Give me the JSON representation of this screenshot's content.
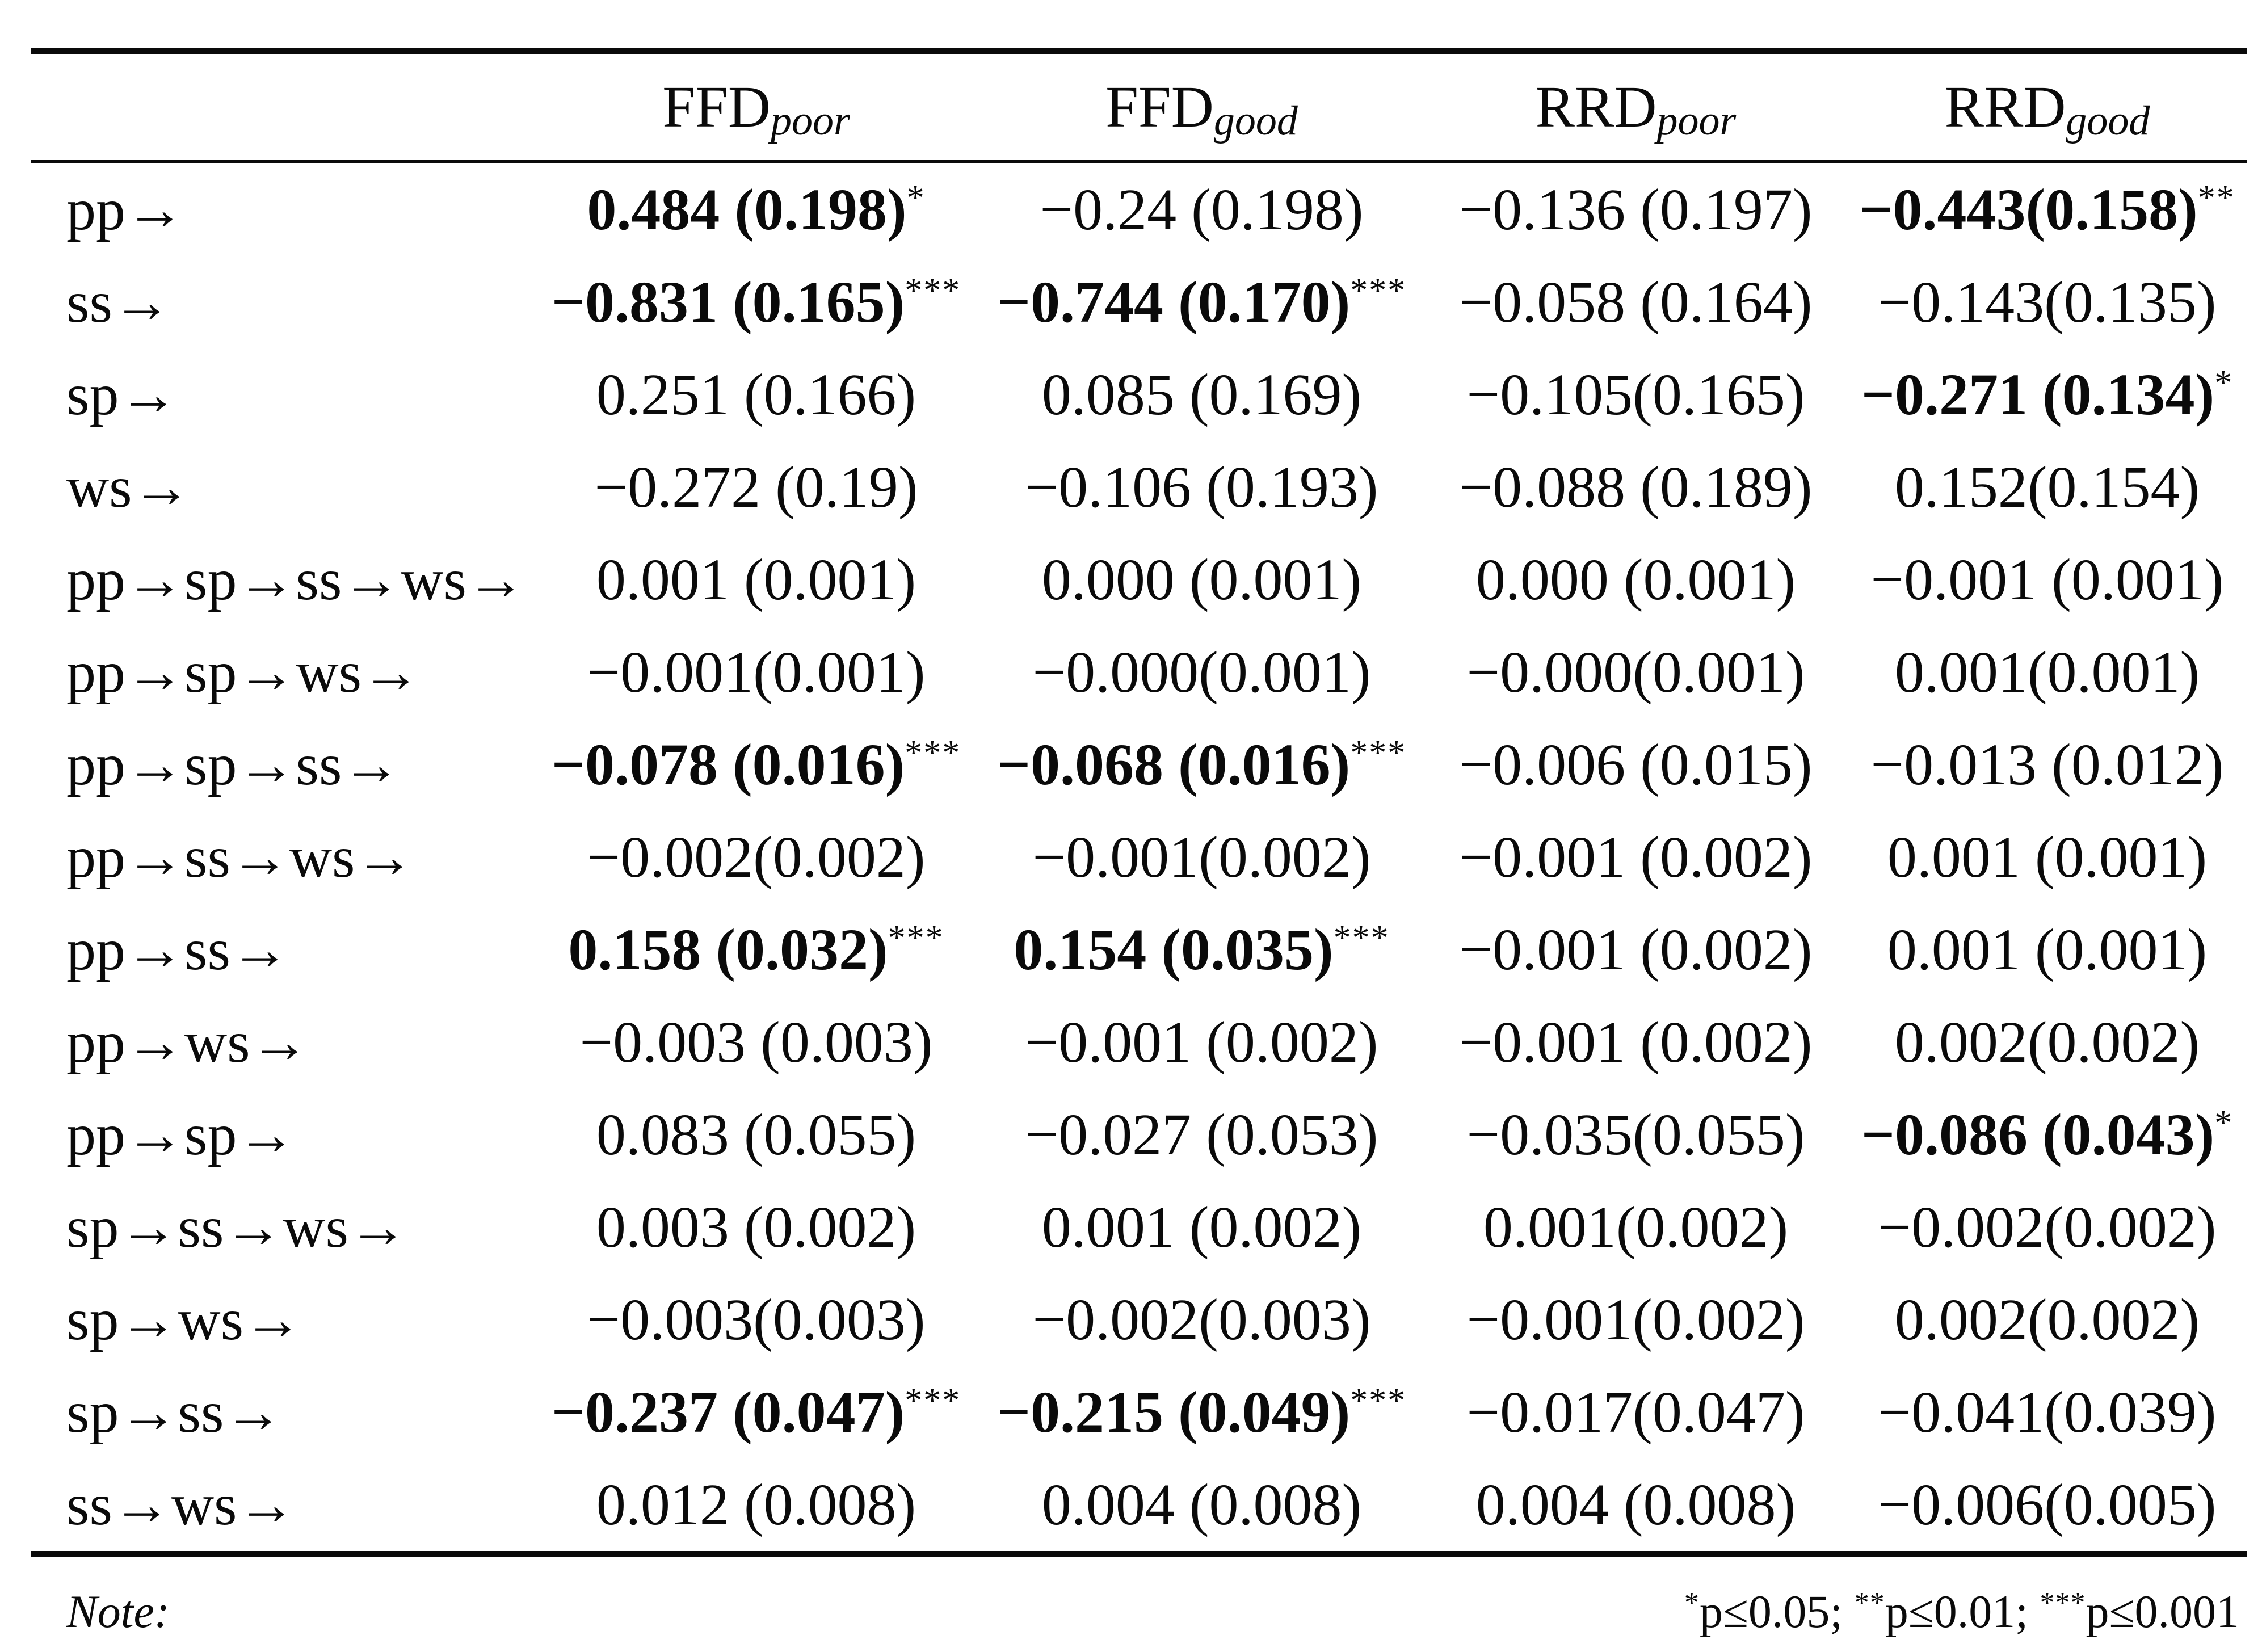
{
  "colors": {
    "background": "#ffffff",
    "text": "#0a0a0a",
    "rule": "#0a0a0a"
  },
  "note": {
    "label": "Note:",
    "legend": [
      {
        "stars": "*",
        "text": "p≤0.05; "
      },
      {
        "stars": "**",
        "text": "p≤0.01; "
      },
      {
        "stars": "***",
        "text": "p≤0.001"
      }
    ]
  },
  "table": {
    "columns": [
      {
        "base": "FFD",
        "sub": "poor"
      },
      {
        "base": "FFD",
        "sub": "good"
      },
      {
        "base": "RRD",
        "sub": "poor"
      },
      {
        "base": "RRD",
        "sub": "good"
      }
    ],
    "rows": [
      {
        "label": "pp→",
        "cells": [
          {
            "text": "0.484 (0.198)",
            "stars": "*",
            "bold": true
          },
          {
            "text": "−0.24 (0.198)",
            "stars": "",
            "bold": false
          },
          {
            "text": "−0.136 (0.197)",
            "stars": "",
            "bold": false
          },
          {
            "text": "−0.443(0.158)",
            "stars": "**",
            "bold": true
          }
        ]
      },
      {
        "label": "ss→",
        "cells": [
          {
            "text": "−0.831 (0.165)",
            "stars": "***",
            "bold": true
          },
          {
            "text": "−0.744 (0.170)",
            "stars": "***",
            "bold": true
          },
          {
            "text": "−0.058 (0.164)",
            "stars": "",
            "bold": false
          },
          {
            "text": "−0.143(0.135)",
            "stars": "",
            "bold": false
          }
        ]
      },
      {
        "label": "sp→",
        "cells": [
          {
            "text": "0.251 (0.166)",
            "stars": "",
            "bold": false
          },
          {
            "text": "0.085 (0.169)",
            "stars": "",
            "bold": false
          },
          {
            "text": "−0.105(0.165)",
            "stars": "",
            "bold": false
          },
          {
            "text": "−0.271 (0.134)",
            "stars": "*",
            "bold": true
          }
        ]
      },
      {
        "label": "ws→",
        "cells": [
          {
            "text": "−0.272 (0.19)",
            "stars": "",
            "bold": false
          },
          {
            "text": "−0.106 (0.193)",
            "stars": "",
            "bold": false
          },
          {
            "text": "−0.088 (0.189)",
            "stars": "",
            "bold": false
          },
          {
            "text": "0.152(0.154)",
            "stars": "",
            "bold": false
          }
        ]
      },
      {
        "label": "pp→sp→ss→ws→",
        "cells": [
          {
            "text": "0.001 (0.001)",
            "stars": "",
            "bold": false
          },
          {
            "text": "0.000 (0.001)",
            "stars": "",
            "bold": false
          },
          {
            "text": "0.000 (0.001)",
            "stars": "",
            "bold": false
          },
          {
            "text": "−0.001 (0.001)",
            "stars": "",
            "bold": false
          }
        ]
      },
      {
        "label": "pp→sp→ws→",
        "cells": [
          {
            "text": "−0.001(0.001)",
            "stars": "",
            "bold": false
          },
          {
            "text": "−0.000(0.001)",
            "stars": "",
            "bold": false
          },
          {
            "text": "−0.000(0.001)",
            "stars": "",
            "bold": false
          },
          {
            "text": "0.001(0.001)",
            "stars": "",
            "bold": false
          }
        ]
      },
      {
        "label": "pp→sp→ss→",
        "cells": [
          {
            "text": "−0.078 (0.016)",
            "stars": "***",
            "bold": true
          },
          {
            "text": "−0.068 (0.016)",
            "stars": "***",
            "bold": true
          },
          {
            "text": "−0.006 (0.015)",
            "stars": "",
            "bold": false
          },
          {
            "text": "−0.013 (0.012)",
            "stars": "",
            "bold": false
          }
        ]
      },
      {
        "label": "pp→ss→ws→",
        "cells": [
          {
            "text": "−0.002(0.002)",
            "stars": "",
            "bold": false
          },
          {
            "text": "−0.001(0.002)",
            "stars": "",
            "bold": false
          },
          {
            "text": "−0.001 (0.002)",
            "stars": "",
            "bold": false
          },
          {
            "text": "0.001 (0.001)",
            "stars": "",
            "bold": false
          }
        ]
      },
      {
        "label": "pp→ss→",
        "cells": [
          {
            "text": "0.158 (0.032)",
            "stars": "***",
            "bold": true
          },
          {
            "text": "0.154 (0.035)",
            "stars": "***",
            "bold": true
          },
          {
            "text": "−0.001 (0.002)",
            "stars": "",
            "bold": false
          },
          {
            "text": "0.001 (0.001)",
            "stars": "",
            "bold": false
          }
        ]
      },
      {
        "label": "pp→ws→",
        "cells": [
          {
            "text": "−0.003 (0.003)",
            "stars": "",
            "bold": false
          },
          {
            "text": "−0.001 (0.002)",
            "stars": "",
            "bold": false
          },
          {
            "text": "−0.001 (0.002)",
            "stars": "",
            "bold": false
          },
          {
            "text": "0.002(0.002)",
            "stars": "",
            "bold": false
          }
        ]
      },
      {
        "label": "pp→sp→",
        "cells": [
          {
            "text": "0.083 (0.055)",
            "stars": "",
            "bold": false
          },
          {
            "text": "−0.027 (0.053)",
            "stars": "",
            "bold": false
          },
          {
            "text": "−0.035(0.055)",
            "stars": "",
            "bold": false
          },
          {
            "text": "−0.086 (0.043)",
            "stars": "*",
            "bold": true
          }
        ]
      },
      {
        "label": "sp→ss→ws→",
        "cells": [
          {
            "text": "0.003 (0.002)",
            "stars": "",
            "bold": false
          },
          {
            "text": "0.001 (0.002)",
            "stars": "",
            "bold": false
          },
          {
            "text": "0.001(0.002)",
            "stars": "",
            "bold": false
          },
          {
            "text": "−0.002(0.002)",
            "stars": "",
            "bold": false
          }
        ]
      },
      {
        "label": "sp→ws→",
        "cells": [
          {
            "text": "−0.003(0.003)",
            "stars": "",
            "bold": false
          },
          {
            "text": "−0.002(0.003)",
            "stars": "",
            "bold": false
          },
          {
            "text": "−0.001(0.002)",
            "stars": "",
            "bold": false
          },
          {
            "text": "0.002(0.002)",
            "stars": "",
            "bold": false
          }
        ]
      },
      {
        "label": "sp→ss→",
        "cells": [
          {
            "text": "−0.237 (0.047)",
            "stars": "***",
            "bold": true
          },
          {
            "text": "−0.215 (0.049)",
            "stars": "***",
            "bold": true
          },
          {
            "text": "−0.017(0.047)",
            "stars": "",
            "bold": false
          },
          {
            "text": "−0.041(0.039)",
            "stars": "",
            "bold": false
          }
        ]
      },
      {
        "label": "ss→ws→",
        "cells": [
          {
            "text": "0.012 (0.008)",
            "stars": "",
            "bold": false
          },
          {
            "text": "0.004 (0.008)",
            "stars": "",
            "bold": false
          },
          {
            "text": "0.004 (0.008)",
            "stars": "",
            "bold": false
          },
          {
            "text": "−0.006(0.005)",
            "stars": "",
            "bold": false
          }
        ]
      }
    ]
  }
}
